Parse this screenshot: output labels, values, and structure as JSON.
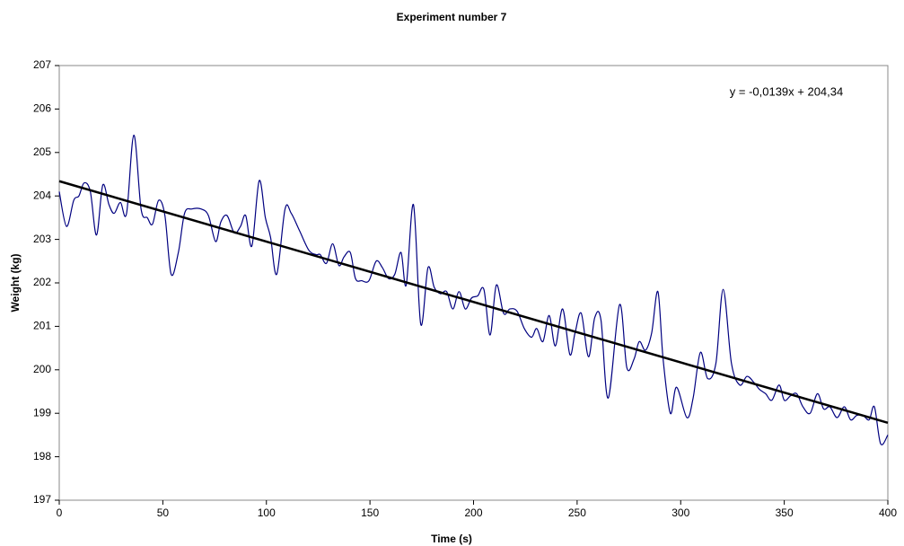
{
  "chart_data": {
    "type": "line",
    "title": "Experiment number 7",
    "x_label": "Time (s)",
    "y_label": "Weight (kg)",
    "annotation": "y = -0,0139x + 204,34",
    "x": [
      0,
      3.5,
      7,
      9.5,
      12,
      15,
      18,
      21,
      24,
      26.5,
      29.5,
      32.5,
      36,
      39.5,
      42.5,
      45,
      48,
      51,
      54,
      57.5,
      60.5,
      64,
      68.5,
      72,
      75.5,
      78,
      81,
      84.5,
      87.5,
      90,
      93,
      96.5,
      99.5,
      102,
      105,
      109,
      112,
      116,
      120.5,
      124,
      126,
      129,
      132,
      135,
      137.5,
      140.5,
      143,
      146,
      149.5,
      153,
      156,
      159,
      162,
      165,
      167.5,
      171,
      174.5,
      178,
      181,
      184,
      187,
      190,
      193,
      196,
      199,
      202,
      205,
      208,
      211,
      214.5,
      217.5,
      221,
      224.5,
      228,
      230.5,
      233.5,
      236.5,
      239.5,
      243,
      246.5,
      249,
      252,
      255.5,
      258.5,
      261.5,
      265,
      270.5,
      274,
      277.5,
      280,
      283,
      286,
      289,
      291.5,
      295,
      298,
      303,
      306,
      309.5,
      313,
      317,
      320.5,
      324.5,
      328.5,
      332,
      335.5,
      338,
      341,
      344,
      347.5,
      350,
      353,
      356,
      359,
      362.5,
      366,
      369,
      372,
      375.5,
      379,
      382,
      385,
      388,
      391,
      393.5,
      396.5,
      400
    ],
    "values": [
      204.1,
      203.3,
      203.9,
      204.0,
      204.3,
      204.1,
      203.1,
      204.25,
      203.8,
      203.6,
      203.85,
      203.6,
      205.4,
      203.7,
      203.5,
      203.35,
      203.9,
      203.55,
      202.2,
      202.7,
      203.6,
      203.7,
      203.7,
      203.55,
      202.95,
      203.4,
      203.55,
      203.15,
      203.3,
      203.55,
      202.85,
      204.35,
      203.5,
      203.05,
      202.2,
      203.7,
      203.6,
      203.2,
      202.75,
      202.65,
      202.65,
      202.45,
      202.9,
      202.4,
      202.6,
      202.7,
      202.1,
      202.05,
      202.05,
      202.5,
      202.35,
      202.1,
      202.2,
      202.7,
      201.95,
      203.8,
      201.05,
      202.35,
      201.9,
      201.75,
      201.8,
      201.4,
      201.8,
      201.4,
      201.65,
      201.7,
      201.85,
      200.8,
      201.95,
      201.3,
      201.4,
      201.35,
      200.95,
      200.75,
      200.95,
      200.65,
      201.25,
      200.55,
      201.4,
      200.35,
      200.85,
      201.3,
      200.3,
      201.2,
      201.15,
      199.35,
      201.5,
      200.05,
      200.25,
      200.65,
      200.45,
      200.85,
      201.8,
      200.25,
      199.0,
      199.6,
      198.9,
      199.35,
      200.4,
      199.8,
      200.15,
      201.85,
      200.15,
      199.65,
      199.85,
      199.7,
      199.55,
      199.45,
      199.3,
      199.65,
      199.3,
      199.4,
      199.45,
      199.15,
      199.0,
      199.45,
      199.1,
      199.15,
      198.9,
      199.15,
      198.85,
      198.95,
      198.95,
      198.85,
      199.15,
      198.3,
      198.5
    ],
    "color": "#000080",
    "trendline": {
      "x": [
        0,
        400
      ],
      "values": [
        204.34,
        198.78
      ],
      "color": "#000000"
    },
    "xlim": [
      0,
      400
    ],
    "xticks": [
      0,
      50,
      100,
      150,
      200,
      250,
      300,
      350,
      400
    ],
    "ylim": [
      197,
      207
    ],
    "yticks": [
      197,
      198,
      199,
      200,
      201,
      202,
      203,
      204,
      205,
      206,
      207
    ]
  }
}
